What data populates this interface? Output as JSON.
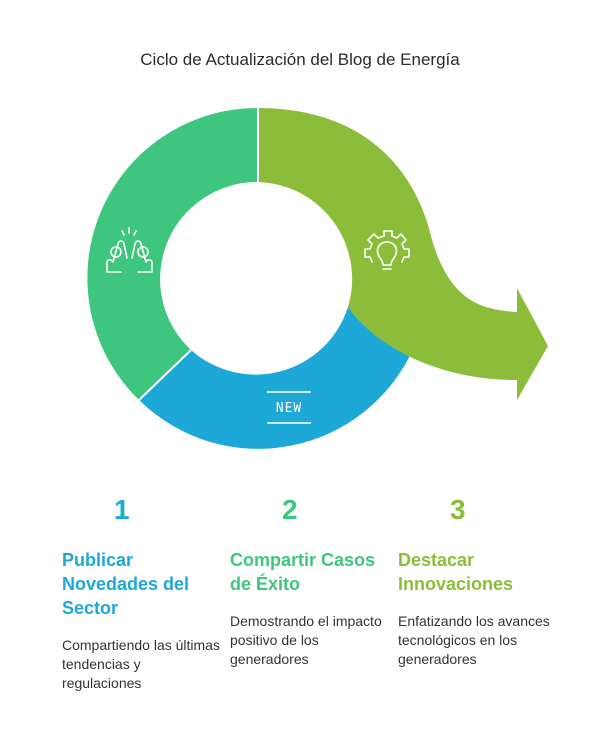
{
  "title": "Ciclo de Actualización del Blog de Energía",
  "colors": {
    "blue": "#1ea8d8",
    "green": "#3fc67e",
    "lime": "#8cbd3a"
  },
  "icons": {
    "segment_green": "high-five-icon",
    "segment_blue": "new-badge-icon",
    "segment_lime": "gear-lightbulb-icon"
  },
  "badge_text": "NEW",
  "steps": [
    {
      "number": "1",
      "heading": "Publicar Novedades del Sector",
      "description": "Compartiendo las últimas tendencias y regulaciones",
      "color": "#1ea8d8"
    },
    {
      "number": "2",
      "heading": "Compartir Casos de Éxito",
      "description": "Demostrando el impacto positivo de los generadores",
      "color": "#3fc67e"
    },
    {
      "number": "3",
      "heading": "Destacar Innovaciones",
      "description": "Enfatizando los avances tecnológicos en los generadores",
      "color": "#8cbd3a"
    }
  ]
}
